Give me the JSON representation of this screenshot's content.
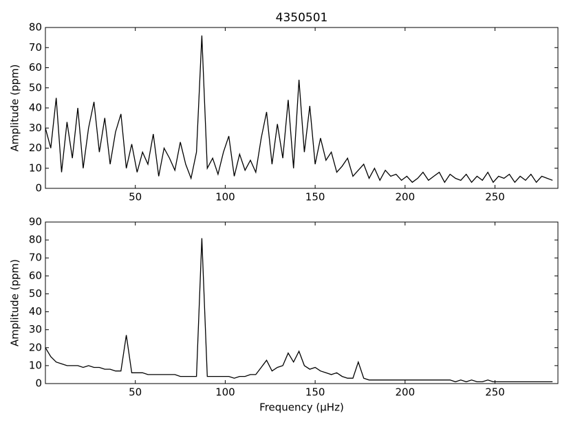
{
  "chart_data": [
    {
      "type": "line",
      "title": "4350501",
      "ylabel": "Amplitude (ppm)",
      "color": "#000000",
      "xlim": [
        0,
        285
      ],
      "xticks": [
        50,
        100,
        150,
        200,
        250
      ],
      "ylim": [
        0,
        80
      ],
      "yticks": [
        0,
        10,
        20,
        30,
        40,
        50,
        60,
        70,
        80
      ],
      "x": [
        0,
        3,
        6,
        9,
        12,
        15,
        18,
        21,
        24,
        27,
        30,
        33,
        36,
        39,
        42,
        45,
        48,
        51,
        54,
        57,
        60,
        63,
        66,
        69,
        72,
        75,
        78,
        81,
        84,
        87,
        90,
        93,
        96,
        99,
        102,
        105,
        108,
        111,
        114,
        117,
        120,
        123,
        126,
        129,
        132,
        135,
        138,
        141,
        144,
        147,
        150,
        153,
        156,
        159,
        162,
        165,
        168,
        171,
        174,
        177,
        180,
        183,
        186,
        189,
        192,
        195,
        198,
        201,
        204,
        207,
        210,
        213,
        216,
        219,
        222,
        225,
        228,
        231,
        234,
        237,
        240,
        243,
        246,
        249,
        252,
        255,
        258,
        261,
        264,
        267,
        270,
        273,
        276,
        279,
        282
      ],
      "values": [
        30,
        20,
        45,
        8,
        33,
        15,
        40,
        10,
        30,
        43,
        18,
        35,
        12,
        28,
        37,
        10,
        22,
        8,
        18,
        12,
        27,
        6,
        20,
        15,
        9,
        23,
        12,
        5,
        18,
        76,
        10,
        15,
        7,
        18,
        26,
        6,
        17,
        9,
        14,
        8,
        25,
        38,
        12,
        32,
        15,
        44,
        10,
        54,
        18,
        41,
        12,
        25,
        14,
        18,
        8,
        11,
        15,
        6,
        9,
        12,
        5,
        10,
        4,
        9,
        6,
        7,
        4,
        6,
        3,
        5,
        8,
        4,
        6,
        8,
        3,
        7,
        5,
        4,
        7,
        3,
        6,
        4,
        8,
        3,
        6,
        5,
        7,
        3,
        6,
        4,
        7,
        3,
        6,
        5,
        4
      ]
    },
    {
      "type": "line",
      "ylabel": "Amplitude (ppm)",
      "xlabel": "Frequency (μHz)",
      "color": "#000000",
      "xlim": [
        0,
        285
      ],
      "xticks": [
        50,
        100,
        150,
        200,
        250
      ],
      "ylim": [
        0,
        90
      ],
      "yticks": [
        0,
        10,
        20,
        30,
        40,
        50,
        60,
        70,
        80,
        90
      ],
      "x": [
        0,
        3,
        6,
        9,
        12,
        15,
        18,
        21,
        24,
        27,
        30,
        33,
        36,
        39,
        42,
        45,
        48,
        51,
        54,
        57,
        60,
        63,
        66,
        69,
        72,
        75,
        78,
        81,
        84,
        87,
        90,
        93,
        96,
        99,
        102,
        105,
        108,
        111,
        114,
        117,
        120,
        123,
        126,
        129,
        132,
        135,
        138,
        141,
        144,
        147,
        150,
        153,
        156,
        159,
        162,
        165,
        168,
        171,
        174,
        177,
        180,
        183,
        186,
        189,
        192,
        195,
        198,
        201,
        204,
        207,
        210,
        213,
        216,
        219,
        222,
        225,
        228,
        231,
        234,
        237,
        240,
        243,
        246,
        249,
        252,
        255,
        258,
        261,
        264,
        267,
        270,
        273,
        276,
        279,
        282
      ],
      "values": [
        20,
        15,
        12,
        11,
        10,
        10,
        10,
        9,
        10,
        9,
        9,
        8,
        8,
        7,
        7,
        27,
        6,
        6,
        6,
        5,
        5,
        5,
        5,
        5,
        5,
        4,
        4,
        4,
        4,
        81,
        4,
        4,
        4,
        4,
        4,
        3,
        4,
        4,
        5,
        5,
        9,
        13,
        7,
        9,
        10,
        17,
        12,
        18,
        10,
        8,
        9,
        7,
        6,
        5,
        6,
        4,
        3,
        3,
        12,
        3,
        2,
        2,
        2,
        2,
        2,
        2,
        2,
        2,
        2,
        2,
        2,
        2,
        2,
        2,
        2,
        2,
        1,
        2,
        1,
        2,
        1,
        1,
        2,
        1,
        1,
        1,
        1,
        1,
        1,
        1,
        1,
        1,
        1,
        1,
        1
      ]
    }
  ]
}
